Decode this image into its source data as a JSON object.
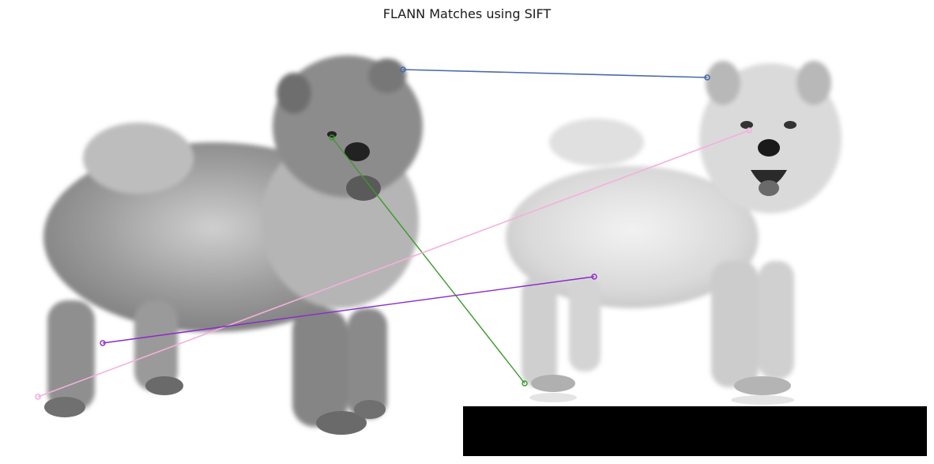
{
  "figure": {
    "title": "FLANN Matches using SIFT"
  },
  "images": [
    {
      "name": "left-image",
      "subject": "chow-chow-dog-gray",
      "icon": "dog-photo"
    },
    {
      "name": "right-image",
      "subject": "chow-chow-dog-light-gray",
      "icon": "dog-photo"
    }
  ],
  "matches": [
    {
      "name": "match-blue",
      "color": "#4a6aa8"
    },
    {
      "name": "match-green",
      "color": "#3a9a2a"
    },
    {
      "name": "match-pink",
      "color": "#f4b0dc"
    },
    {
      "name": "match-purple",
      "color": "#8a2ac8"
    }
  ],
  "colors": {
    "background": "#ffffff",
    "padding_block": "#000000"
  }
}
